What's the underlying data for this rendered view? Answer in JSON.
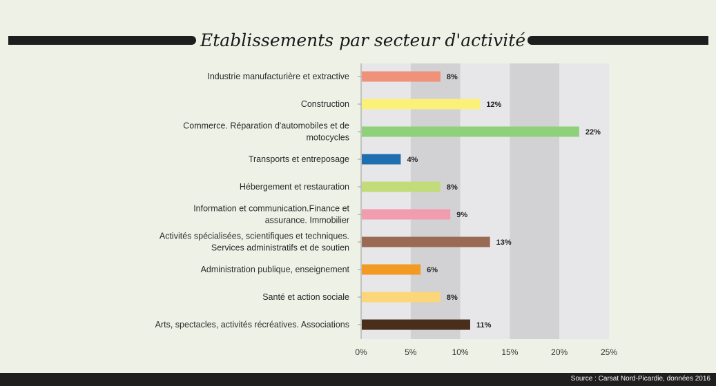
{
  "colors": {
    "background": "#eef2e6",
    "band_light": "#e7e7e9",
    "band_dark": "#d2d2d4",
    "title_rule": "#1e1e1e",
    "footer": "#1e1e1e"
  },
  "chart_data": {
    "type": "bar",
    "orientation": "horizontal",
    "title": "Etablissements par secteur d'activité",
    "categories": [
      "Industrie manufacturière et extractive",
      "Construction",
      "Commerce. Réparation d'automobiles et de motocycles",
      "Transports et entreposage",
      "Hébergement et restauration",
      "Information et communication.Finance et assurance. Immobilier",
      "Activités spécialisées, scientifiques et techniques. Services administratifs et de soutien",
      "Administration publique, enseignement",
      "Santé et action sociale",
      "Arts, spectacles, activités récréatives. Associations"
    ],
    "category_lines": [
      [
        "Industrie manufacturière et extractive"
      ],
      [
        "Construction"
      ],
      [
        "Commerce. Réparation d'automobiles et de",
        "motocycles"
      ],
      [
        "Transports et entreposage"
      ],
      [
        "Hébergement et restauration"
      ],
      [
        "Information et communication.Finance et",
        "assurance. Immobilier"
      ],
      [
        "Activités spécialisées, scientifiques et techniques.",
        "Services administratifs et de soutien"
      ],
      [
        "Administration publique, enseignement"
      ],
      [
        "Santé et action sociale"
      ],
      [
        "Arts, spectacles, activités récréatives. Associations"
      ]
    ],
    "values": [
      8,
      12,
      22,
      4,
      8,
      9,
      13,
      6,
      8,
      11
    ],
    "value_labels": [
      "8%",
      "12%",
      "22%",
      "4%",
      "8%",
      "9%",
      "13%",
      "6%",
      "8%",
      "11%"
    ],
    "bar_colors": [
      "#f0917a",
      "#fbf07a",
      "#8fd17a",
      "#1f6fb0",
      "#c2dc7a",
      "#f29cb0",
      "#9a6a55",
      "#f29a22",
      "#fbd77a",
      "#4a2e1c"
    ],
    "xlim": [
      0,
      25
    ],
    "xticks": [
      0,
      5,
      10,
      15,
      20,
      25
    ],
    "xtick_labels": [
      "0%",
      "5%",
      "10%",
      "15%",
      "20%",
      "25%"
    ],
    "xlabel": "",
    "ylabel": "",
    "grid": "alternating vertical bands",
    "legend": "none"
  },
  "footer": {
    "source": "Source : Carsat Nord-Picardie, données 2016"
  }
}
